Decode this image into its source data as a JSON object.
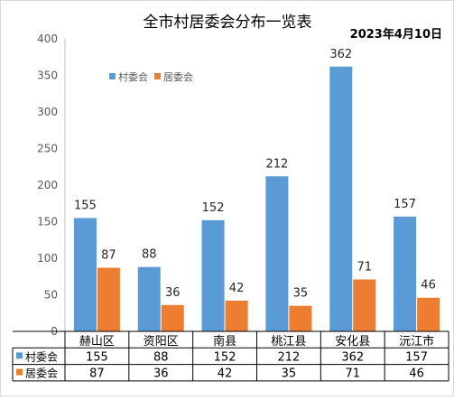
{
  "chart_data": {
    "type": "bar",
    "title": "全市村居委会分布一览表",
    "date_label": "2023年4月10日",
    "categories": [
      "赫山区",
      "资阳区",
      "南县",
      "桃江县",
      "安化县",
      "沅江市"
    ],
    "series": [
      {
        "name": "村委会",
        "color": "#5B9BD5",
        "values": [
          155,
          88,
          152,
          212,
          362,
          157
        ]
      },
      {
        "name": "居委会",
        "color": "#ED7D31",
        "values": [
          87,
          36,
          42,
          35,
          71,
          46
        ]
      }
    ],
    "ylim": [
      0,
      400
    ],
    "yticks": [
      0,
      50,
      100,
      150,
      200,
      250,
      300,
      350,
      400
    ],
    "grid": false,
    "legend_position": "top-left",
    "data_table": true
  }
}
